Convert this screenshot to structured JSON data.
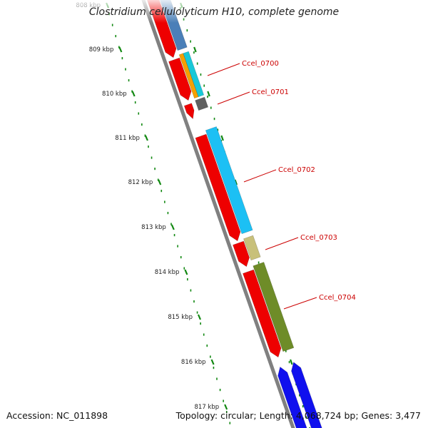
{
  "title": "Clostridium cellulolyticum H10, complete genome",
  "accession": "Accession: NC_011898",
  "topology": "Topology: circular; Length: 4,068,724 bp; Genes: 3,477",
  "ticks": [
    "808 kbp",
    "809 kbp",
    "810 kbp",
    "811 kbp",
    "812 kbp",
    "813 kbp",
    "814 kbp",
    "815 kbp",
    "816 kbp",
    "817 kbp"
  ],
  "gene_labels": [
    "Ccel_0700",
    "Ccel_0701",
    "Ccel_0702",
    "Ccel_0703",
    "Ccel_0704"
  ],
  "colors": {
    "backbone": "#808080",
    "tick": "#118811",
    "label": "#cc0000",
    "cds_red": "#ee0000",
    "steelblue": "#4a7fb8",
    "cyan": "#18c8d8",
    "orange": "#f5a000",
    "gray": "#606060",
    "skyblue": "#1cc0f4",
    "khaki": "#c8c07a",
    "olive": "#6e8c28",
    "blue": "#1010ee"
  }
}
